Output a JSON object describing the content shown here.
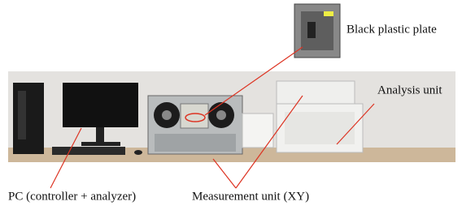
{
  "labels": {
    "plate": "Black plastic plate",
    "analysis": "Analysis unit",
    "pc": "PC (controller + analyzer)",
    "measurement": "Measurement unit (XY)"
  }
}
